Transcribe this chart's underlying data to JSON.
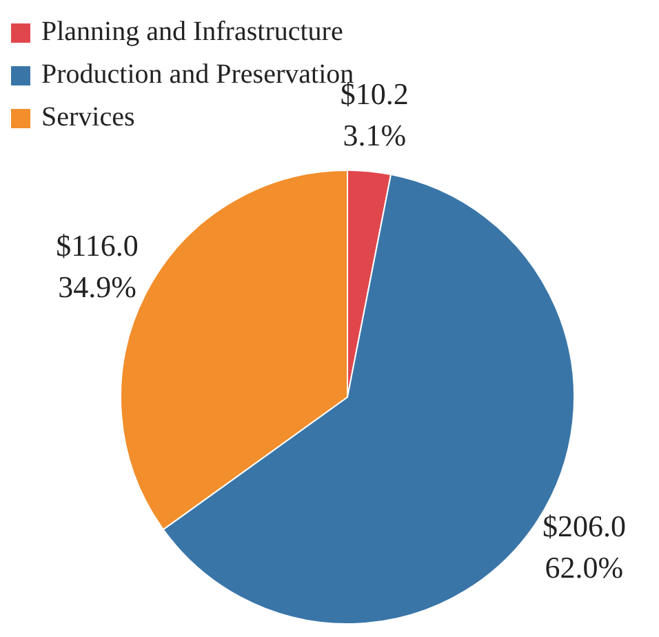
{
  "chart_data": {
    "type": "pie",
    "categories": [
      "Planning and Infrastructure",
      "Production and Preservation",
      "Services"
    ],
    "values": [
      10.2,
      206.0,
      116.0
    ],
    "colors": [
      "#e0474c",
      "#3a75a8",
      "#f28e2b"
    ],
    "value_labels": [
      "$10.2\n3.1%",
      "$206.0\n62.0%",
      "$116.0\n34.9%"
    ],
    "legend": "top left"
  }
}
